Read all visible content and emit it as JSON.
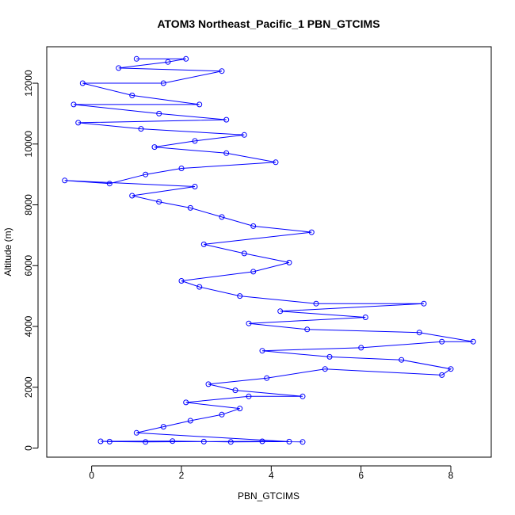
{
  "chart_data": {
    "type": "scatter",
    "title": "ATOM3 Northeast_Pacific_1 PBN_GTCIMS",
    "xlabel": "PBN_GTCIMS",
    "ylabel": "Altitude (m)",
    "xlim": [
      -1.0,
      8.9
    ],
    "ylim": [
      -300,
      13200
    ],
    "xticks": [
      0,
      2,
      4,
      6,
      8
    ],
    "yticks": [
      0,
      2000,
      4000,
      6000,
      8000,
      10000,
      12000
    ],
    "grid": false,
    "legend": "none",
    "point_style": "open-circle-connected",
    "color": "#0000ff",
    "series": [
      {
        "values": [
          [
            4.7,
            200
          ],
          [
            3.8,
            220
          ],
          [
            2.5,
            210
          ],
          [
            1.2,
            200
          ],
          [
            0.4,
            210
          ],
          [
            0.2,
            220
          ],
          [
            1.8,
            230
          ],
          [
            3.1,
            200
          ],
          [
            4.4,
            210
          ],
          [
            1.0,
            500
          ],
          [
            1.6,
            700
          ],
          [
            2.2,
            900
          ],
          [
            2.9,
            1100
          ],
          [
            3.3,
            1300
          ],
          [
            2.1,
            1500
          ],
          [
            3.5,
            1700
          ],
          [
            4.7,
            1700
          ],
          [
            3.2,
            1900
          ],
          [
            2.6,
            2100
          ],
          [
            3.9,
            2300
          ],
          [
            5.2,
            2600
          ],
          [
            7.8,
            2400
          ],
          [
            8.0,
            2600
          ],
          [
            6.9,
            2900
          ],
          [
            5.3,
            3000
          ],
          [
            3.8,
            3200
          ],
          [
            6.0,
            3300
          ],
          [
            7.8,
            3500
          ],
          [
            8.5,
            3500
          ],
          [
            7.3,
            3800
          ],
          [
            4.8,
            3900
          ],
          [
            3.5,
            4100
          ],
          [
            6.1,
            4300
          ],
          [
            4.2,
            4500
          ],
          [
            7.4,
            4750
          ],
          [
            5.0,
            4750
          ],
          [
            3.3,
            5000
          ],
          [
            2.4,
            5300
          ],
          [
            2.0,
            5500
          ],
          [
            3.6,
            5800
          ],
          [
            4.4,
            6100
          ],
          [
            3.4,
            6400
          ],
          [
            2.5,
            6700
          ],
          [
            4.9,
            7100
          ],
          [
            3.6,
            7300
          ],
          [
            2.9,
            7600
          ],
          [
            2.2,
            7900
          ],
          [
            1.5,
            8100
          ],
          [
            0.9,
            8300
          ],
          [
            2.3,
            8600
          ],
          [
            -0.6,
            8800
          ],
          [
            0.4,
            8700
          ],
          [
            1.2,
            9000
          ],
          [
            2.0,
            9200
          ],
          [
            4.1,
            9400
          ],
          [
            3.0,
            9700
          ],
          [
            1.4,
            9900
          ],
          [
            2.3,
            10100
          ],
          [
            3.4,
            10300
          ],
          [
            1.1,
            10500
          ],
          [
            -0.3,
            10700
          ],
          [
            3.0,
            10800
          ],
          [
            1.5,
            11000
          ],
          [
            -0.4,
            11300
          ],
          [
            2.4,
            11300
          ],
          [
            0.9,
            11600
          ],
          [
            -0.2,
            12000
          ],
          [
            1.6,
            12000
          ],
          [
            2.9,
            12400
          ],
          [
            0.6,
            12500
          ],
          [
            1.7,
            12700
          ],
          [
            2.1,
            12800
          ],
          [
            1.0,
            12800
          ]
        ]
      }
    ]
  }
}
